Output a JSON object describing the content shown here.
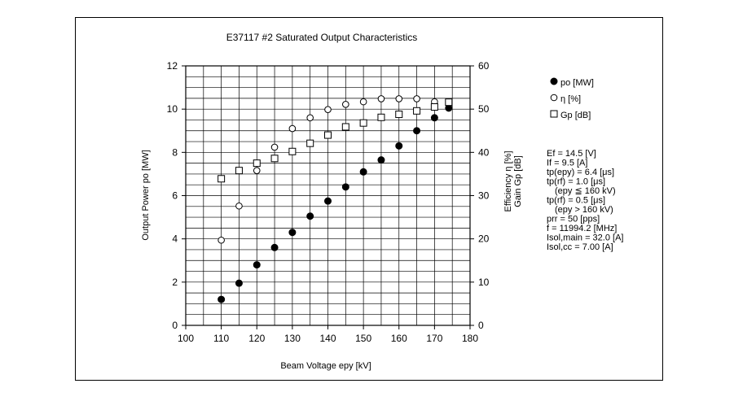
{
  "chart_data": {
    "type": "scatter",
    "title": "E37117 #2 Saturated Output Characteristics",
    "xlabel": "Beam Voltage epy [kV]",
    "ylabel_left": "Output  Power po [MW]",
    "ylabel_right": [
      "Efficiency η [%]",
      "Gain Gp [dB]"
    ],
    "xlim": [
      100,
      180
    ],
    "ylim_left": [
      0,
      12
    ],
    "ylim_right": [
      0,
      60
    ],
    "x_ticks": [
      "100",
      "110",
      "120",
      "130",
      "140",
      "150",
      "160",
      "170",
      "180"
    ],
    "y_ticks_left": [
      "0",
      "2",
      "4",
      "6",
      "8",
      "10",
      "12"
    ],
    "y_ticks_right": [
      "0",
      "10",
      "20",
      "30",
      "40",
      "50",
      "60"
    ],
    "grid": true,
    "legend_position": "right",
    "series": [
      {
        "name": "po [MW]",
        "marker": "filled-circle",
        "axis": "left",
        "x": [
          110,
          115,
          120,
          125,
          130,
          135,
          140,
          145,
          150,
          155,
          160,
          165,
          170,
          174
        ],
        "y": [
          1.2,
          1.95,
          2.8,
          3.6,
          4.3,
          5.05,
          5.75,
          6.4,
          7.1,
          7.65,
          8.3,
          9.0,
          9.6,
          10.05
        ]
      },
      {
        "name": "η [%]",
        "marker": "open-circle",
        "axis": "right",
        "x": [
          110,
          115,
          120,
          125,
          130,
          135,
          140,
          145,
          150,
          155,
          160,
          165,
          170,
          174
        ],
        "y": [
          19.7,
          27.6,
          35.8,
          41.2,
          45.5,
          48.0,
          49.9,
          51.1,
          51.7,
          52.4,
          52.4,
          52.4,
          51.7,
          51.4
        ]
      },
      {
        "name": "Gp [dB]",
        "marker": "open-square",
        "axis": "right",
        "x": [
          110,
          115,
          120,
          125,
          130,
          135,
          140,
          145,
          150,
          155,
          160,
          165,
          170,
          174
        ],
        "y": [
          33.9,
          35.8,
          37.5,
          38.6,
          40.2,
          42.1,
          44.0,
          45.9,
          46.8,
          48.1,
          48.8,
          49.6,
          50.5,
          51.6
        ]
      }
    ],
    "annotations": [
      "Ef = 14.5 [V]",
      "If = 9.5 [A]",
      "tp(epy) = 6.4 [μs]",
      "tp(rf) = 1.0 [μs]",
      "(epy ≦ 160 kV)",
      "tp(rf) = 0.5 [μs]",
      "(epy > 160 kV)",
      "prr = 50 [pps]",
      "f = 11994.2 [MHz]",
      "Isol,main = 32.0 [A]",
      "Isol,cc = 7.00 [A]"
    ]
  }
}
